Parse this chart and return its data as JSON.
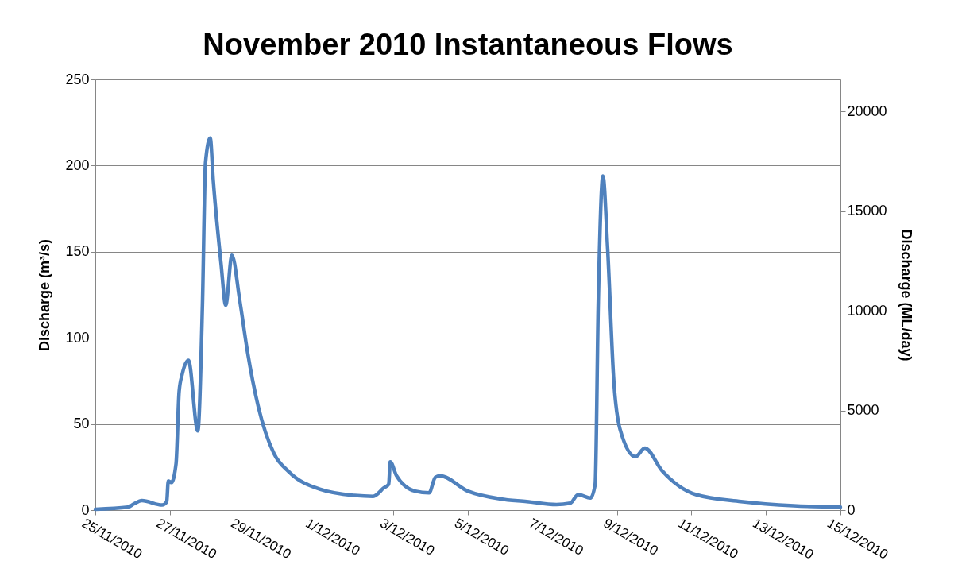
{
  "chart_data": {
    "type": "line",
    "title": "November 2010 Instantaneous Flows",
    "ylabel": "Discharge (m³/s)",
    "y2label": "Discharge (ML/day)",
    "x": [
      "2010-11-25T00:00",
      "2010-11-25T21:00",
      "2010-11-26T01:00",
      "2010-11-26T06:00",
      "2010-11-26T19:00",
      "2010-11-26T22:00",
      "2010-11-26T23:00",
      "2010-11-27T01:00",
      "2010-11-27T04:00",
      "2010-11-27T06:00",
      "2010-11-27T08:00",
      "2010-11-27T12:00",
      "2010-11-27T18:00",
      "2010-11-27T21:00",
      "2010-11-27T23:00",
      "2010-11-28T02:00",
      "2010-11-28T04:00",
      "2010-11-28T09:00",
      "2010-11-28T12:00",
      "2010-11-28T16:00",
      "2010-11-28T21:00",
      "2010-11-29T02:00",
      "2010-11-29T09:00",
      "2010-11-29T19:00",
      "2010-11-30T05:00",
      "2010-12-01T01:00",
      "2010-12-01T23:00",
      "2010-12-02T11:00",
      "2010-12-02T18:00",
      "2010-12-02T21:00",
      "2010-12-02T22:00",
      "2010-12-03T02:00",
      "2010-12-03T14:00",
      "2010-12-03T23:00",
      "2010-12-04T03:00",
      "2010-12-04T06:00",
      "2010-12-05T00:00",
      "2010-12-05T21:00",
      "2010-12-06T14:00",
      "2010-12-07T09:00",
      "2010-12-07T18:00",
      "2010-12-07T23:00",
      "2010-12-08T07:00",
      "2010-12-08T10:00",
      "2010-12-08T12:00",
      "2010-12-08T15:00",
      "2010-12-08T18:00",
      "2010-12-08T22:00",
      "2010-12-09T02:00",
      "2010-12-09T12:00",
      "2010-12-09T18:00",
      "2010-12-10T05:00",
      "2010-12-11T03:00",
      "2010-12-12T08:00",
      "2010-12-13T18:00",
      "2010-12-15T00:00"
    ],
    "series": [
      {
        "color": "#4f81bd",
        "values": [
          0.5,
          1.7,
          3.7,
          5.5,
          3,
          4.8,
          17,
          16,
          27,
          69,
          79,
          87,
          46,
          119,
          202,
          216,
          191,
          143,
          119,
          148,
          122,
          92,
          60,
          33,
          22,
          12,
          8.5,
          8,
          13,
          15,
          28,
          20,
          11,
          10,
          19,
          20,
          11,
          6.5,
          5,
          3.2,
          4,
          9,
          7,
          15,
          121,
          194,
          152,
          75,
          47,
          31,
          36,
          23,
          9,
          5,
          2.5,
          1.7
        ]
      }
    ],
    "xlim": [
      "2010-11-25T00:00",
      "2010-12-15T00:00"
    ],
    "xticks": [
      {
        "value": "2010-11-25",
        "label": "25/11/2010"
      },
      {
        "value": "2010-11-27",
        "label": "27/11/2010"
      },
      {
        "value": "2010-11-29",
        "label": "29/11/2010"
      },
      {
        "value": "2010-12-01",
        "label": "1/12/2010"
      },
      {
        "value": "2010-12-03",
        "label": "3/12/2010"
      },
      {
        "value": "2010-12-05",
        "label": "5/12/2010"
      },
      {
        "value": "2010-12-07",
        "label": "7/12/2010"
      },
      {
        "value": "2010-12-09",
        "label": "9/12/2010"
      },
      {
        "value": "2010-12-11",
        "label": "11/12/2010"
      },
      {
        "value": "2010-12-13",
        "label": "13/12/2010"
      },
      {
        "value": "2010-12-15",
        "label": "15/12/2010"
      }
    ],
    "ylim": [
      0,
      250
    ],
    "yticks": [
      0,
      50,
      100,
      150,
      200,
      250
    ],
    "y2lim": [
      0,
      21600
    ],
    "y2ticks": [
      0,
      5000,
      10000,
      15000,
      20000
    ],
    "grid": "y",
    "marker": "none",
    "line_style": "solid"
  }
}
